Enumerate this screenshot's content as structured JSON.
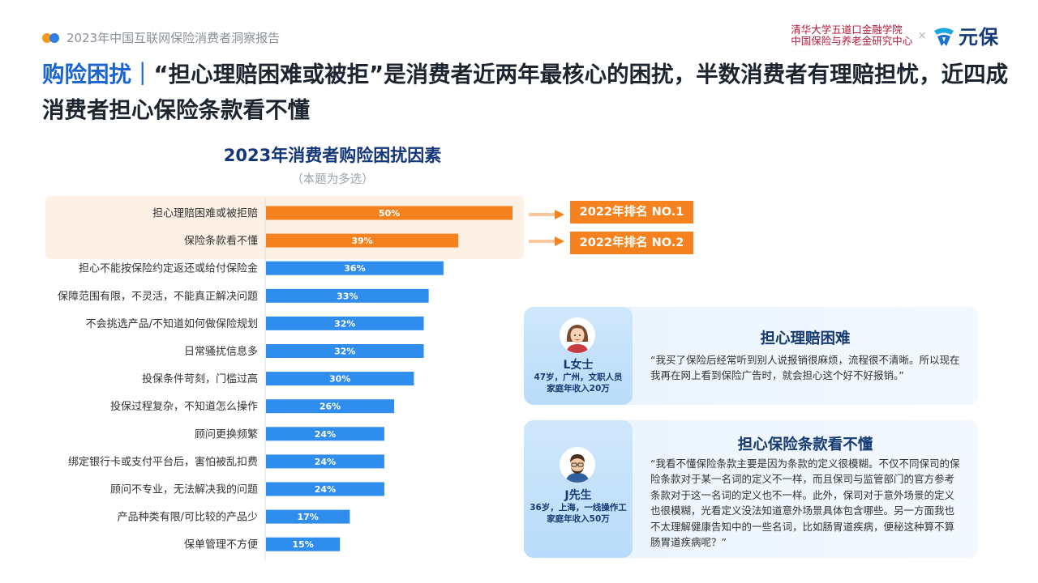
{
  "header": {
    "report_title": "2023年中国互联网保险消费者洞察报告",
    "partner_name_line1": "清华大学五道口金融学院",
    "partner_name_line2": "中国保险与养老金研究中心",
    "separator": "×",
    "brand_name": "元保"
  },
  "headline": {
    "tag": "购险困扰｜",
    "text": "“担心理赔困难或被拒”是消费者近两年最核心的困扰，半数消费者有理赔担忧，近四成消费者担心保险条款看不懂"
  },
  "chart_data": {
    "type": "bar",
    "orientation": "horizontal",
    "title": "2023年消费者购险困扰因素",
    "subtitle": "（本题为多选）",
    "categories": [
      "担心理赔困难或被拒赔",
      "保险条款看不懂",
      "担心不能按保险约定返还或给付保险金",
      "保障范围有限，不灵活，不能真正解决问题",
      "不会挑选产品/不知道如何做保险规划",
      "日常骚扰信息多",
      "投保条件苛刻，门槛过高",
      "投保过程复杂，不知道怎么操作",
      "顾问更换频繁",
      "绑定银行卡或支付平台后，害怕被乱扣费",
      "顾问不专业，无法解决我的问题",
      "产品种类有限/可比较的产品少",
      "保单管理不方便"
    ],
    "values": [
      50,
      39,
      36,
      33,
      32,
      32,
      30,
      26,
      24,
      24,
      24,
      17,
      15
    ],
    "value_labels": [
      "50%",
      "39%",
      "36%",
      "33%",
      "32%",
      "32%",
      "30%",
      "26%",
      "24%",
      "24%",
      "24%",
      "17%",
      "15%"
    ],
    "unit": "%",
    "highlight_count": 2,
    "colors": {
      "highlight": "#f5821f",
      "default": "#2f8ded",
      "highlight_band": "#fdf1e6"
    }
  },
  "rank_badges": [
    "2022年排名 NO.1",
    "2022年排名 NO.2"
  ],
  "cards": [
    {
      "avatar": "woman-avatar-icon",
      "name": "L女士",
      "info_line1": "47岁，广州，文职人员",
      "info_line2": "家庭年收入20万",
      "title": "担心理赔困难",
      "quote": "“我买了保险后经常听到别人说报销很麻烦，流程很不清晰。所以现在我再在网上看到保险广告时，就会担心这个好不好报销。”"
    },
    {
      "avatar": "man-avatar-icon",
      "name": "J先生",
      "info_line1": "36岁，上海，一线操作工",
      "info_line2": "家庭年收入50万",
      "title": "担心保险条款看不懂",
      "quote": "“我看不懂保险条款主要是因为条款的定义很模糊。不仅不同保司的保险条款对于某一名词的定义不一样，而且保司与监管部门的官方参考条款对于这一名词的定义也不一样。此外，保司对于意外场景的定义也很模糊，光看定义没法知道意外场景具体包含哪些。另一方面我也不太理解健康告知中的一些名词，比如肠胃道疾病，便秘这种算不算肠胃道疾病呢？”"
    }
  ]
}
